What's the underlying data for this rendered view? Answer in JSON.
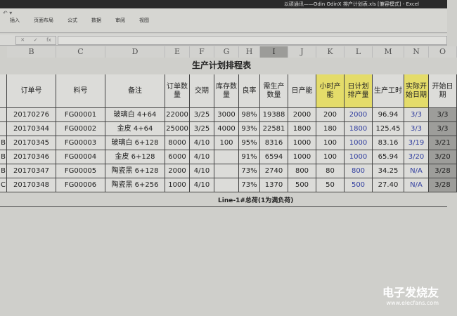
{
  "window": {
    "title": "以硕通讯——Odin OdinX 排产计划表.xls [兼容模式] - Excel"
  },
  "ribbon": {
    "tabs": [
      "插入",
      "页面布局",
      "公式",
      "数据",
      "审阅",
      "视图"
    ]
  },
  "formula_bar": {
    "cancel": "✕",
    "enter": "✓",
    "fx": "fx",
    "value": ""
  },
  "columns": [
    "B",
    "C",
    "D",
    "E",
    "F",
    "G",
    "H",
    "I",
    "J",
    "K",
    "L",
    "M",
    "N",
    "O"
  ],
  "selected_column": "I",
  "sheet": {
    "title": "生产计划排程表",
    "headers": [
      "订单号",
      "料号",
      "备注",
      "订单数量",
      "交期",
      "库存数量",
      "良率",
      "需生产数量",
      "日产能",
      "小时产能",
      "日计划排产量",
      "生产工时",
      "实际开始日期",
      "开始日期"
    ],
    "highlight_headers": [
      "小时产能",
      "日计划排产量",
      "实际开始日期"
    ],
    "rows": [
      {
        "a": "",
        "cells": [
          "20170276",
          "FG00001",
          "玻璃白 4+64",
          "22000",
          "3/25",
          "3000",
          "98%",
          "19388",
          "2000",
          "200",
          "2000",
          "96.94",
          "3/3",
          "3/3"
        ]
      },
      {
        "a": "",
        "cells": [
          "20170344",
          "FG00002",
          "金皮 4+64",
          "25000",
          "3/25",
          "4000",
          "93%",
          "22581",
          "1800",
          "180",
          "1800",
          "125.45",
          "3/3",
          "3/3"
        ]
      },
      {
        "a": "B",
        "cells": [
          "20170345",
          "FG00003",
          "玻璃白 6+128",
          "8000",
          "4/10",
          "100",
          "95%",
          "8316",
          "1000",
          "100",
          "1000",
          "83.16",
          "3/19",
          "3/21"
        ]
      },
      {
        "a": "B",
        "cells": [
          "20170346",
          "FG00004",
          "金皮 6+128",
          "6000",
          "4/10",
          "",
          "91%",
          "6594",
          "1000",
          "100",
          "1000",
          "65.94",
          "3/20",
          "3/20"
        ]
      },
      {
        "a": "B",
        "cells": [
          "20170347",
          "FG00005",
          "陶瓷黑 6+128",
          "2000",
          "4/10",
          "",
          "73%",
          "2740",
          "800",
          "80",
          "800",
          "34.25",
          "N/A",
          "3/28"
        ]
      },
      {
        "a": "C",
        "cells": [
          "20170348",
          "FG00006",
          "陶瓷黑 6+256",
          "1000",
          "4/10",
          "",
          "73%",
          "1370",
          "500",
          "50",
          "500",
          "27.40",
          "N/A",
          "3/28"
        ]
      }
    ],
    "footer": "Line-1#总荷(1为满负荷)"
  },
  "watermark": {
    "name": "电子发烧友",
    "url": "www.elecfans.com"
  },
  "colors": {
    "highlight": "#e4dc6a",
    "blue_text": "#3340a0"
  }
}
